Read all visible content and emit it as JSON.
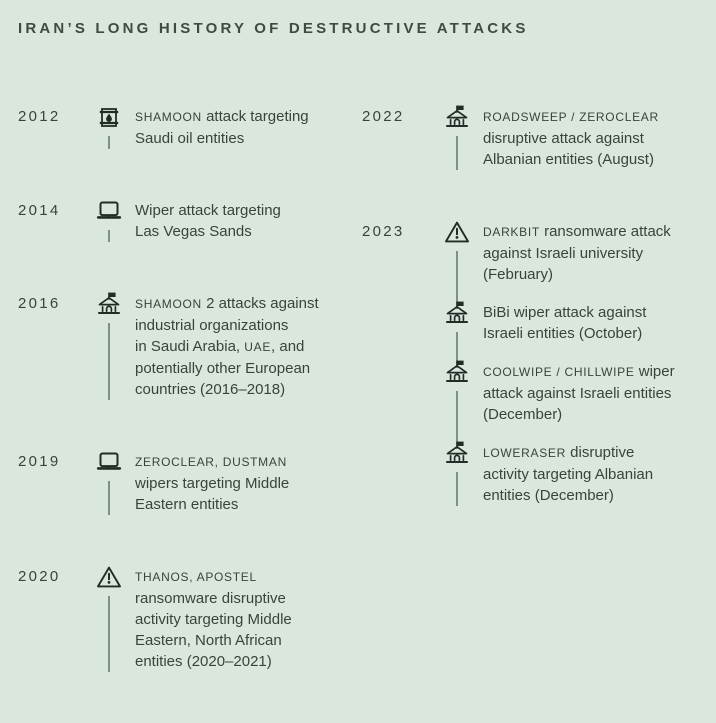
{
  "title": "IRAN’S LONG HISTORY OF DESTRUCTIVE ATTACKS",
  "colors": {
    "background": "#d9e7dc",
    "text": "#39433d",
    "title": "#3f4a43",
    "rail_line": "#7f9086",
    "icon": "#232b26"
  },
  "columns": [
    {
      "side": "left",
      "groups": [
        {
          "year": "2012",
          "entries": [
            {
              "icon": "oil-barrel",
              "parts": [
                {
                  "style": "caps",
                  "text": "SHAMOON"
                },
                {
                  "style": "normal",
                  "text": " attack targeting\nSaudi oil entities"
                }
              ]
            }
          ]
        },
        {
          "year": "2014",
          "entries": [
            {
              "icon": "laptop",
              "parts": [
                {
                  "style": "normal",
                  "text": "Wiper attack targeting\nLas Vegas Sands"
                }
              ]
            }
          ]
        },
        {
          "year": "2016",
          "entries": [
            {
              "icon": "bank",
              "parts": [
                {
                  "style": "caps",
                  "text": "SHAMOON"
                },
                {
                  "style": "normal",
                  "text": " 2 attacks against\nindustrial organizations\nin Saudi Arabia, "
                },
                {
                  "style": "caps",
                  "text": "UAE"
                },
                {
                  "style": "normal",
                  "text": ", and\npotentially other European\ncountries (2016–2018)"
                }
              ]
            }
          ]
        },
        {
          "year": "2019",
          "entries": [
            {
              "icon": "laptop",
              "parts": [
                {
                  "style": "caps",
                  "text": "ZEROCLEAR, DUSTMAN"
                },
                {
                  "style": "normal",
                  "text": "\nwipers targeting Middle\nEastern entities"
                }
              ]
            }
          ]
        },
        {
          "year": "2020",
          "entries": [
            {
              "icon": "warning",
              "parts": [
                {
                  "style": "caps",
                  "text": "THANOS, APOSTEL"
                },
                {
                  "style": "normal",
                  "text": "\nransomware disruptive\nactivity targeting Middle\nEastern, North African\nentities (2020–2021)"
                }
              ]
            }
          ]
        }
      ]
    },
    {
      "side": "right",
      "groups": [
        {
          "year": "2022",
          "entries": [
            {
              "icon": "bank",
              "parts": [
                {
                  "style": "caps",
                  "text": "ROADSWEEP / ZEROCLEAR"
                },
                {
                  "style": "normal",
                  "text": "\ndisruptive attack against\nAlbanian entities (August)"
                }
              ]
            }
          ]
        },
        {
          "year": "2023",
          "entries": [
            {
              "icon": "warning",
              "parts": [
                {
                  "style": "caps",
                  "text": "DARKBIT"
                },
                {
                  "style": "normal",
                  "text": " ransomware attack\nagainst Israeli university\n(February)"
                }
              ]
            },
            {
              "icon": "bank",
              "parts": [
                {
                  "style": "normal",
                  "text": "BiBi wiper attack against\nIsraeli entities (October)"
                }
              ]
            },
            {
              "icon": "bank",
              "parts": [
                {
                  "style": "caps",
                  "text": "COOLWIPE / CHILLWIPE"
                },
                {
                  "style": "normal",
                  "text": " wiper\nattack against Israeli entities\n(December)"
                }
              ]
            },
            {
              "icon": "bank",
              "parts": [
                {
                  "style": "caps",
                  "text": "LOWERASER"
                },
                {
                  "style": "normal",
                  "text": " disruptive\nactivity targeting Albanian\nentities (December)"
                }
              ]
            }
          ]
        }
      ]
    }
  ],
  "icon_names": {
    "oil-barrel": "oil-barrel-icon",
    "laptop": "laptop-icon",
    "bank": "bank-flag-icon",
    "warning": "warning-icon"
  }
}
